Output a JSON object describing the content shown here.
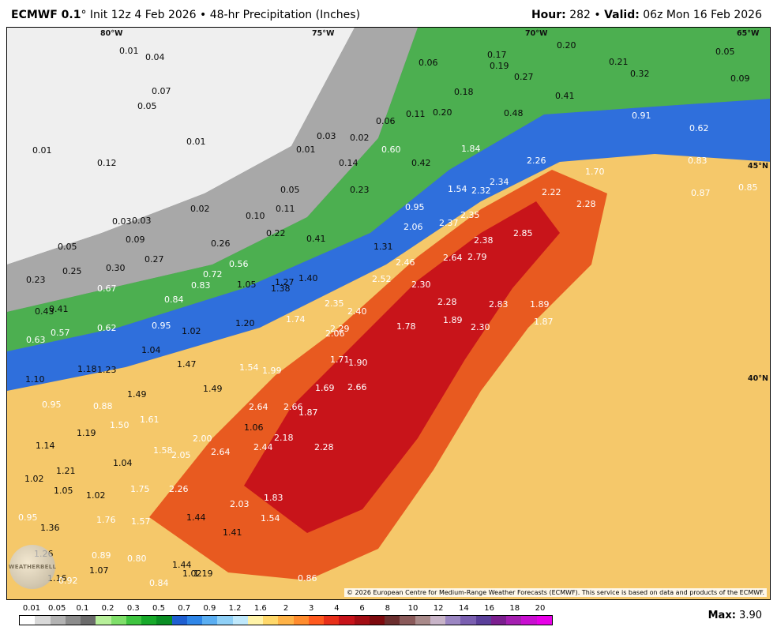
{
  "header": {
    "model": "ECMWF 0.1",
    "deg": "°",
    "init_text": " Init 12z 4 Feb 2026 • 48-hr Precipitation (Inches)",
    "hour_label": "Hour:",
    "hour_value": " 282",
    "bullet": " • ",
    "valid_label": "Valid:",
    "valid_value": " 06z Mon 16 Feb 2026"
  },
  "map": {
    "lon_labels": [
      "80°W",
      "75°W",
      "70°W",
      "65°W"
    ],
    "lat_labels": [
      "45°N",
      "40°N"
    ],
    "copyright": "© 2026 European Centre for Medium-Range Weather Forecasts (ECMWF). This service is based on data and products of the ECMWF.",
    "logo_text": "WEATHERBELL",
    "values": [
      "0.01",
      "0.04",
      "0.06",
      "0.17",
      "0.19",
      "0.20",
      "0.21",
      "0.05",
      "0.07",
      "0.27",
      "0.32",
      "0.09",
      "0.05",
      "0.06",
      "0.11",
      "0.20",
      "0.18",
      "0.41",
      "0.48",
      "0.91",
      "0.62",
      "0.01",
      "0.01",
      "0.03",
      "0.02",
      "0.01",
      "0.12",
      "0.60",
      "1.84",
      "0.14",
      "0.42",
      "2.26",
      "1.70",
      "0.83",
      "0.85",
      "0.05",
      "0.23",
      "1.54",
      "2.32",
      "2.34",
      "2.22",
      "0.87",
      "0.02",
      "0.11",
      "0.95",
      "2.28",
      "0.03",
      "0.03",
      "0.10",
      "0.22",
      "2.06",
      "2.37",
      "2.35",
      "0.05",
      "0.09",
      "0.26",
      "0.41",
      "1.31",
      "2.38",
      "2.85",
      "0.25",
      "0.27",
      "0.56",
      "2.46",
      "2.64",
      "2.79",
      "0.23",
      "0.30",
      "0.72",
      "1.05",
      "1.27",
      "1.40",
      "2.52",
      "2.30",
      "0.67",
      "0.83",
      "1.38",
      "0.41",
      "0.84",
      "2.35",
      "2.28",
      "2.83",
      "1.89",
      "0.43",
      "2.40",
      "1.74",
      "1.78",
      "1.89",
      "2.30",
      "1.87",
      "0.62",
      "0.95",
      "1.02",
      "1.20",
      "0.57",
      "2.29",
      "2.06",
      "0.63",
      "1.04",
      "1.71",
      "1.90",
      "1.18",
      "1.23",
      "1.47",
      "1.54",
      "1.99",
      "1.10",
      "2.66",
      "1.49",
      "1.49",
      "1.69",
      "0.95",
      "0.88",
      "1.61",
      "2.64",
      "1.87",
      "1.19",
      "1.50",
      "1.06",
      "2.66",
      "2.18",
      "1.14",
      "2.00",
      "2.44",
      "2.28",
      "1.58",
      "2.05",
      "2.64",
      "1.21",
      "1.04",
      "1.02",
      "1.75",
      "2.26",
      "1.05",
      "1.02",
      "2.03",
      "1.83",
      "0.95",
      "1.76",
      "1.57",
      "1.44",
      "1.54",
      "1.36",
      "1.41",
      "1.26",
      "0.89",
      "0.80",
      "1.44",
      "1.07",
      "1.02",
      "1.19",
      "1.16",
      "0.92",
      "0.84",
      "0.86"
    ]
  },
  "scale": {
    "ticks": [
      "0.01",
      "0.05",
      "0.1",
      "0.2",
      "0.3",
      "0.5",
      "0.7",
      "0.9",
      "1.2",
      "1.6",
      "2",
      "3",
      "4",
      "6",
      "8",
      "10",
      "12",
      "14",
      "16",
      "18",
      "20"
    ],
    "colors": [
      "#ffffff",
      "#d9d9d9",
      "#b3b3b3",
      "#8c8c8c",
      "#6b6b6b",
      "#b7ef9a",
      "#7fdf6a",
      "#3fc440",
      "#17a92a",
      "#0a8d24",
      "#1f5fd1",
      "#2f86e8",
      "#5aaef2",
      "#8fd0f7",
      "#bfe8fb",
      "#fff3a8",
      "#ffd86a",
      "#ffb347",
      "#ff8c2e",
      "#ff5a1f",
      "#e8301a",
      "#c7131a",
      "#a20d14",
      "#7d0a0e",
      "#6b2e2e",
      "#8a5a5a",
      "#a98a8a",
      "#c8b4c8",
      "#9b86c2",
      "#7a5fb0",
      "#5a3f9a",
      "#7b1f8f",
      "#a41fb0",
      "#c80fd0",
      "#e800e8"
    ],
    "max_label": "Max:",
    "max_value": " 3.90"
  }
}
